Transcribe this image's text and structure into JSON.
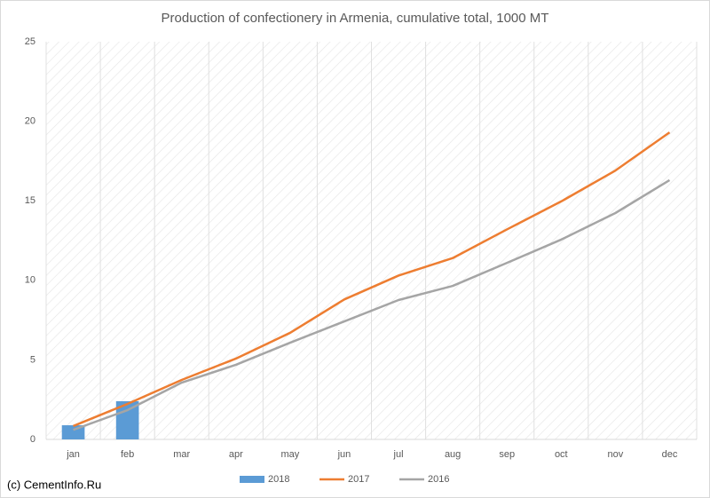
{
  "chart_data": {
    "type": "line",
    "title": "Production of confectionery in Armenia, cumulative total, 1000 MT",
    "source": "(c) CementInfo.Ru",
    "categories": [
      "jan",
      "feb",
      "mar",
      "apr",
      "may",
      "jun",
      "jul",
      "aug",
      "sep",
      "oct",
      "nov",
      "dec"
    ],
    "series": [
      {
        "name": "2018",
        "type": "bar",
        "color": "#5b9bd5",
        "values": [
          0.89,
          2.4,
          null,
          null,
          null,
          null,
          null,
          null,
          null,
          null,
          null,
          null
        ]
      },
      {
        "name": "2017",
        "type": "line",
        "color": "#ed7d31",
        "values": [
          0.84,
          2.23,
          3.74,
          5.08,
          6.7,
          8.8,
          10.3,
          11.4,
          13.2,
          14.96,
          16.9,
          19.3
        ]
      },
      {
        "name": "2016",
        "type": "line",
        "color": "#a5a5a5",
        "values": [
          0.6,
          1.84,
          3.57,
          4.69,
          6.08,
          7.42,
          8.76,
          9.65,
          11.1,
          12.56,
          14.23,
          16.3
        ]
      }
    ],
    "ylim": [
      0,
      25
    ],
    "yticks": [
      0,
      5,
      10,
      15,
      20,
      25
    ],
    "legend": "bottom"
  }
}
